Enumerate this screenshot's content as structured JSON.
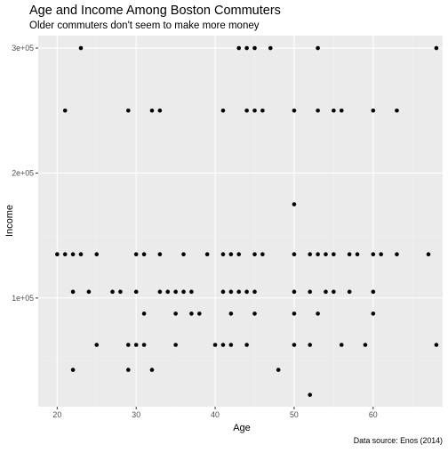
{
  "chart_data": {
    "type": "scatter",
    "title": "Age and Income Among Boston Commuters",
    "subtitle": "Older commuters don't seem to make more money",
    "xlabel": "Age",
    "ylabel": "Income",
    "caption": "Data source: Enos (2014)",
    "xlim": [
      17.6,
      68.8
    ],
    "ylim": [
      13000,
      310000
    ],
    "xticks": [
      20,
      30,
      40,
      50,
      60,
      70
    ],
    "yticks": [
      100000,
      200000,
      300000
    ],
    "ytick_labels": [
      "1e+05",
      "2e+05",
      "3e+05"
    ],
    "grid": true,
    "points": [
      [
        20,
        135000
      ],
      [
        21,
        135000
      ],
      [
        22,
        135000
      ],
      [
        23,
        135000
      ],
      [
        25,
        135000
      ],
      [
        30,
        135000
      ],
      [
        31,
        135000
      ],
      [
        33,
        135000
      ],
      [
        36,
        135000
      ],
      [
        39,
        135000
      ],
      [
        41,
        135000
      ],
      [
        42,
        135000
      ],
      [
        43,
        135000
      ],
      [
        45,
        135000
      ],
      [
        46,
        135000
      ],
      [
        50,
        135000
      ],
      [
        52,
        135000
      ],
      [
        53,
        135000
      ],
      [
        54,
        135000
      ],
      [
        55,
        135000
      ],
      [
        57,
        135000
      ],
      [
        58,
        135000
      ],
      [
        60,
        135000
      ],
      [
        61,
        135000
      ],
      [
        63,
        135000
      ],
      [
        67,
        135000
      ],
      [
        23,
        300000
      ],
      [
        43,
        300000
      ],
      [
        44,
        300000
      ],
      [
        45,
        300000
      ],
      [
        47,
        300000
      ],
      [
        53,
        300000
      ],
      [
        68,
        300000
      ],
      [
        21,
        250000
      ],
      [
        29,
        250000
      ],
      [
        32,
        250000
      ],
      [
        33,
        250000
      ],
      [
        41,
        250000
      ],
      [
        44,
        250000
      ],
      [
        45,
        250000
      ],
      [
        46,
        250000
      ],
      [
        50,
        250000
      ],
      [
        53,
        250000
      ],
      [
        55,
        250000
      ],
      [
        56,
        250000
      ],
      [
        60,
        250000
      ],
      [
        63,
        250000
      ],
      [
        50,
        175000
      ],
      [
        22,
        105000
      ],
      [
        24,
        105000
      ],
      [
        27,
        105000
      ],
      [
        28,
        105000
      ],
      [
        30,
        105000
      ],
      [
        33,
        105000
      ],
      [
        34,
        105000
      ],
      [
        35,
        105000
      ],
      [
        36,
        105000
      ],
      [
        37,
        105000
      ],
      [
        41,
        105000
      ],
      [
        42,
        105000
      ],
      [
        43,
        105000
      ],
      [
        44,
        105000
      ],
      [
        45,
        105000
      ],
      [
        50,
        105000
      ],
      [
        52,
        105000
      ],
      [
        54,
        105000
      ],
      [
        55,
        105000
      ],
      [
        57,
        105000
      ],
      [
        60,
        105000
      ],
      [
        31,
        87500
      ],
      [
        35,
        87500
      ],
      [
        37,
        87500
      ],
      [
        38,
        87500
      ],
      [
        42,
        87500
      ],
      [
        45,
        87500
      ],
      [
        50,
        87500
      ],
      [
        53,
        87500
      ],
      [
        60,
        87500
      ],
      [
        25,
        62500
      ],
      [
        29,
        62500
      ],
      [
        30,
        62500
      ],
      [
        31,
        62500
      ],
      [
        35,
        62500
      ],
      [
        40,
        62500
      ],
      [
        41,
        62500
      ],
      [
        42,
        62500
      ],
      [
        44,
        62500
      ],
      [
        50,
        62500
      ],
      [
        52,
        62500
      ],
      [
        56,
        62500
      ],
      [
        59,
        62500
      ],
      [
        68,
        62500
      ],
      [
        22,
        42500
      ],
      [
        29,
        42500
      ],
      [
        32,
        42500
      ],
      [
        48,
        42500
      ],
      [
        52,
        22500
      ]
    ]
  }
}
